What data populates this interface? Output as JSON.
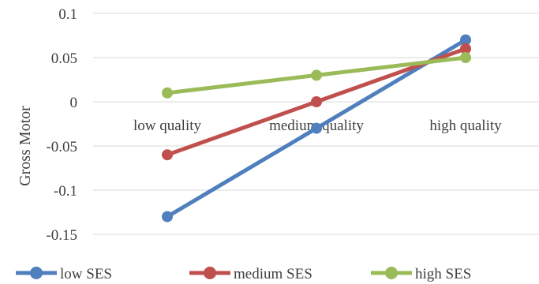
{
  "chart_data": {
    "type": "line",
    "categories": [
      "low quality",
      "medium quality",
      "high quality"
    ],
    "ylabel": "Gross Motor",
    "xlabel": "",
    "title": "",
    "ylim": [
      -0.15,
      0.1
    ],
    "y_ticks": [
      0.1,
      0.05,
      0,
      -0.05,
      -0.1,
      -0.15
    ],
    "y_tick_labels": [
      "0.1",
      "0.05",
      "0",
      "-0.05",
      "-0.1",
      "-0.15"
    ],
    "grid": true,
    "legend_position": "bottom",
    "series": [
      {
        "name": "low SES",
        "color": "#4f7fbd",
        "values": [
          -0.13,
          -0.03,
          0.07
        ]
      },
      {
        "name": "medium SES",
        "color": "#c0504d",
        "values": [
          -0.06,
          0.0,
          0.06
        ]
      },
      {
        "name": "high SES",
        "color": "#9bbb59",
        "values": [
          0.01,
          0.03,
          0.05
        ]
      }
    ]
  }
}
